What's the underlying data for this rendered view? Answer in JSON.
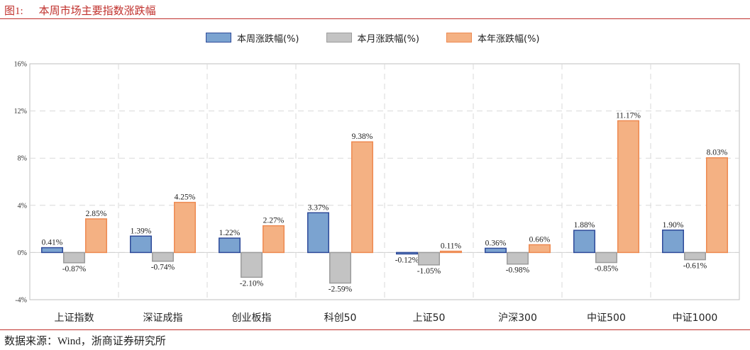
{
  "figure": {
    "number": "图1:",
    "title": "本周市场主要指数涨跌幅",
    "source": "数据来源：Wind，浙商证券研究所"
  },
  "colors": {
    "accent": "#c0302c",
    "weekly_fill": "#7ba3d0",
    "weekly_stroke": "#2f4b9a",
    "monthly_fill": "#c3c3c3",
    "monthly_stroke": "#9c9c9c",
    "yearly_fill": "#f4b183",
    "yearly_stroke": "#ee8a52",
    "grid": "#d9d9d9"
  },
  "chart_data": {
    "type": "bar",
    "categories": [
      "上证指数",
      "深证成指",
      "创业板指",
      "科创50",
      "上证50",
      "沪深300",
      "中证500",
      "中证1000"
    ],
    "series": [
      {
        "name": "本周涨跌幅(%)",
        "values": [
          0.41,
          1.39,
          1.22,
          3.37,
          -0.12,
          0.36,
          1.88,
          1.9
        ],
        "labels": [
          "0.41%",
          "1.39%",
          "1.22%",
          "3.37%",
          "-0.12%",
          "0.36%",
          "1.88%",
          "1.90%"
        ]
      },
      {
        "name": "本月涨跌幅(%)",
        "values": [
          -0.87,
          -0.74,
          -2.1,
          -2.59,
          -1.05,
          -0.98,
          -0.85,
          -0.61
        ],
        "labels": [
          "-0.87%",
          "-0.74%",
          "-2.10%",
          "-2.59%",
          "-1.05%",
          "-0.98%",
          "-0.85%",
          "-0.61%"
        ]
      },
      {
        "name": "本年涨跌幅(%)",
        "values": [
          2.85,
          4.25,
          2.27,
          9.38,
          0.11,
          0.66,
          11.17,
          8.03
        ],
        "labels": [
          "2.85%",
          "4.25%",
          "2.27%",
          "9.38%",
          "0.11%",
          "0.66%",
          "11.17%",
          "8.03%"
        ]
      }
    ],
    "yticks": [
      "-4%",
      "0%",
      "4%",
      "8%",
      "12%",
      "16%"
    ],
    "ylim": [
      -4,
      16
    ],
    "grid": true,
    "legend": "top"
  }
}
